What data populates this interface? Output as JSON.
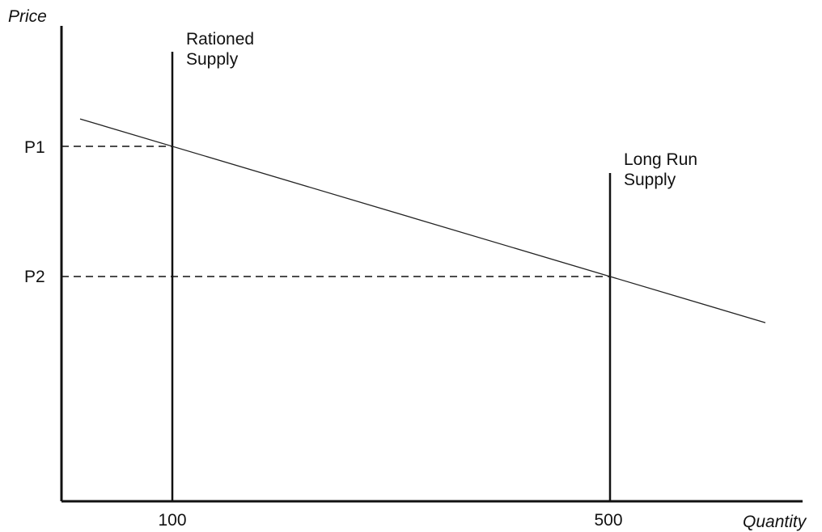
{
  "chart_data": {
    "type": "line",
    "xlabel": "Quantity",
    "ylabel": "Price",
    "x_ticks": [
      {
        "value": 100,
        "label": "100"
      },
      {
        "value": 500,
        "label": "500"
      }
    ],
    "y_ticks": [
      {
        "value": "P1",
        "label": "P1"
      },
      {
        "value": "P2",
        "label": "P2"
      }
    ],
    "series": [
      {
        "label": "",
        "points": [
          {
            "x": 100,
            "y": "P1"
          },
          {
            "x": 500,
            "y": "P2"
          }
        ],
        "style": "solid-thin",
        "extends_both_ends": true
      },
      {
        "name": "Rationed Supply",
        "x": 100,
        "style": "vertical"
      },
      {
        "name": "Long Run Supply",
        "x": 500,
        "style": "vertical"
      }
    ],
    "annotations": [
      {
        "text": "Rationed Supply",
        "lines": [
          "Rationed",
          "Supply"
        ],
        "attached_to": "Rationed Supply"
      },
      {
        "text": "Long Run Supply",
        "lines": [
          "Long Run",
          "Supply"
        ],
        "attached_to": "Long Run Supply"
      }
    ],
    "guides": [
      {
        "from_axis": "y",
        "at": "P1",
        "to_x": 100,
        "style": "dashed"
      },
      {
        "from_axis": "y",
        "at": "P2",
        "to_x": 500,
        "style": "dashed"
      }
    ],
    "grid": false,
    "legend": "none"
  }
}
